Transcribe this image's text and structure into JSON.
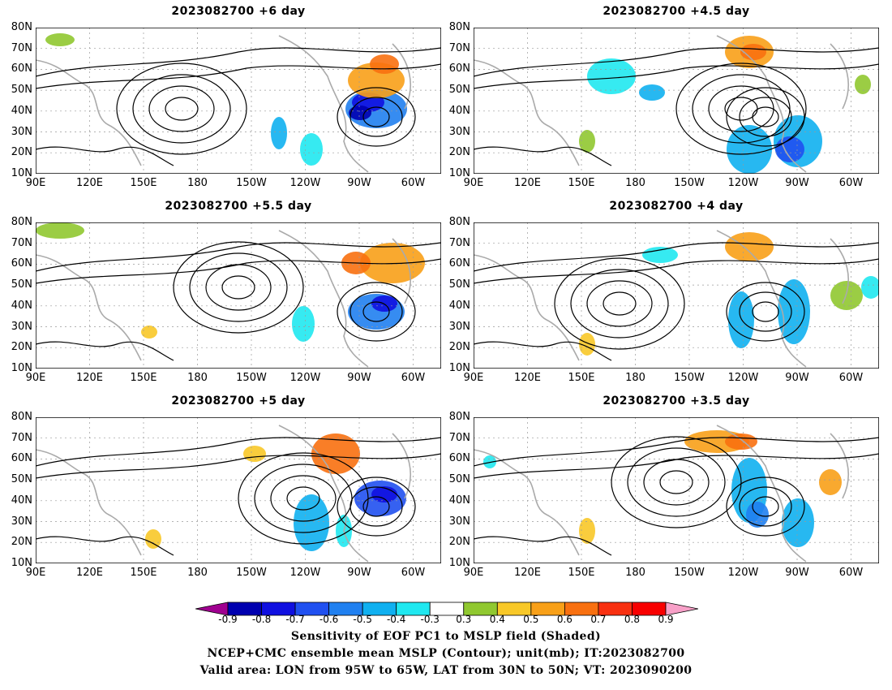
{
  "panels": [
    {
      "title": "2023082700  +6 day"
    },
    {
      "title": "2023082700  +4.5 day"
    },
    {
      "title": "2023082700  +5.5 day"
    },
    {
      "title": "2023082700  +4 day"
    },
    {
      "title": "2023082700  +5 day"
    },
    {
      "title": "2023082700  +3.5 day"
    }
  ],
  "lat_labels": [
    "80N",
    "70N",
    "60N",
    "50N",
    "40N",
    "30N",
    "20N",
    "10N"
  ],
  "lon_labels": [
    "90E",
    "120E",
    "150E",
    "180",
    "150W",
    "120W",
    "90W",
    "60W"
  ],
  "colorbar": {
    "labels": [
      "-0.9",
      "-0.8",
      "-0.7",
      "-0.6",
      "-0.5",
      "-0.4",
      "-0.3",
      "0.3",
      "0.4",
      "0.5",
      "0.6",
      "0.7",
      "0.8",
      "0.9"
    ],
    "colors": [
      "#a00090",
      "#0000b0",
      "#1010e0",
      "#2050f0",
      "#2080f0",
      "#10b0f0",
      "#20e8f0",
      "#ffffff",
      "#90c830",
      "#f8c828",
      "#f8a018",
      "#f87010",
      "#f83010",
      "#f80000",
      "#f8a0c8"
    ]
  },
  "captions": [
    "Sensitivity of EOF PC1 to MSLP field (Shaded)",
    "NCEP+CMC ensemble mean MSLP (Contour); unit(mb); IT:2023082700",
    "Valid area: LON from 95W to 65W, LAT from 30N to 50N; VT: 2023090200"
  ]
}
